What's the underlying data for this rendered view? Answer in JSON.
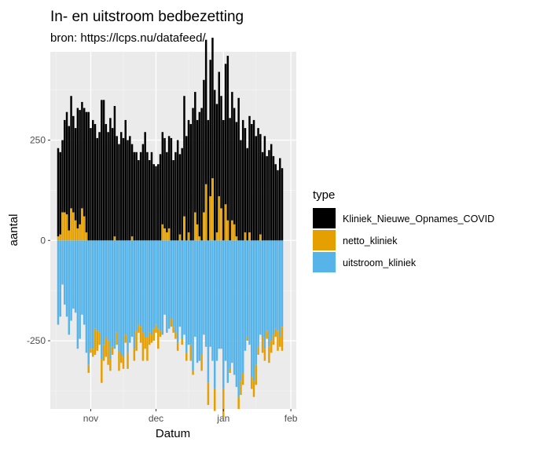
{
  "chart_data": {
    "type": "bar",
    "title": "In- en uitstroom bedbezetting",
    "subtitle": "bron: https://lcps.nu/datafeed/",
    "xlabel": "Datum",
    "ylabel": "aantal",
    "x_ticks": [
      "nov",
      "dec",
      "jan",
      "feb"
    ],
    "y_ticks": [
      250,
      0,
      -250
    ],
    "ylim": [
      -420,
      470
    ],
    "grid": true,
    "legend": {
      "title": "type",
      "position": "right"
    },
    "colors": {
      "Kliniek_Nieuwe_Opnames_COVID": "#000000",
      "netto_kliniek": "#E69F00",
      "uitstroom_kliniek": "#56B4E9"
    },
    "x": [
      "2020-10-17",
      "2020-10-18",
      "2020-10-19",
      "2020-10-20",
      "2020-10-21",
      "2020-10-22",
      "2020-10-23",
      "2020-10-24",
      "2020-10-25",
      "2020-10-26",
      "2020-10-27",
      "2020-10-28",
      "2020-10-29",
      "2020-10-30",
      "2020-10-31",
      "2020-11-01",
      "2020-11-02",
      "2020-11-03",
      "2020-11-04",
      "2020-11-05",
      "2020-11-06",
      "2020-11-07",
      "2020-11-08",
      "2020-11-09",
      "2020-11-10",
      "2020-11-11",
      "2020-11-12",
      "2020-11-13",
      "2020-11-14",
      "2020-11-15",
      "2020-11-16",
      "2020-11-17",
      "2020-11-18",
      "2020-11-19",
      "2020-11-20",
      "2020-11-21",
      "2020-11-22",
      "2020-11-23",
      "2020-11-24",
      "2020-11-25",
      "2020-11-26",
      "2020-11-27",
      "2020-11-28",
      "2020-11-29",
      "2020-11-30",
      "2020-12-01",
      "2020-12-02",
      "2020-12-03",
      "2020-12-04",
      "2020-12-05",
      "2020-12-06",
      "2020-12-07",
      "2020-12-08",
      "2020-12-09",
      "2020-12-10",
      "2020-12-11",
      "2020-12-12",
      "2020-12-13",
      "2020-12-14",
      "2020-12-15",
      "2020-12-16",
      "2020-12-17",
      "2020-12-18",
      "2020-12-19",
      "2020-12-20",
      "2020-12-21",
      "2020-12-22",
      "2020-12-23",
      "2020-12-24",
      "2020-12-25",
      "2020-12-26",
      "2020-12-27",
      "2020-12-28",
      "2020-12-29",
      "2020-12-30",
      "2020-12-31",
      "2021-01-01",
      "2021-01-02",
      "2021-01-03",
      "2021-01-04",
      "2021-01-05",
      "2021-01-06",
      "2021-01-07",
      "2021-01-08",
      "2021-01-09",
      "2021-01-10",
      "2021-01-11",
      "2021-01-12",
      "2021-01-13",
      "2021-01-14",
      "2021-01-15",
      "2021-01-16",
      "2021-01-17",
      "2021-01-18",
      "2021-01-19",
      "2021-01-20",
      "2021-01-21",
      "2021-01-22",
      "2021-01-23",
      "2021-01-24",
      "2021-01-25",
      "2021-01-26",
      "2021-01-27",
      "2021-01-28"
    ],
    "series": [
      {
        "name": "Kliniek_Nieuwe_Opnames_COVID",
        "values": [
          220,
          205,
          180,
          230,
          255,
          260,
          280,
          240,
          230,
          300,
          285,
          265,
          270,
          300,
          320,
          280,
          300,
          290,
          255,
          270,
          350,
          350,
          290,
          270,
          305,
          280,
          325,
          260,
          240,
          270,
          255,
          300,
          250,
          260,
          230,
          220,
          220,
          200,
          220,
          240,
          270,
          220,
          200,
          220,
          190,
          185,
          190,
          215,
          230,
          225,
          200,
          230,
          255,
          200,
          220,
          250,
          200,
          230,
          300,
          260,
          280,
          290,
          330,
          300,
          260,
          310,
          330,
          330,
          360,
          300,
          340,
          350,
          375,
          320,
          310,
          280,
          300,
          350,
          410,
          305,
          320,
          290,
          285,
          355,
          250,
          300,
          260,
          230,
          290,
          290,
          300,
          260,
          280,
          250,
          220,
          260,
          210,
          225,
          240,
          210,
          190,
          175,
          205,
          180
        ]
      },
      {
        "name": "netto_kliniek",
        "values": [
          10,
          15,
          70,
          70,
          65,
          25,
          80,
          70,
          50,
          30,
          40,
          80,
          60,
          20,
          -20,
          -10,
          -20,
          -65,
          -50,
          -30,
          -60,
          -40,
          -50,
          -60,
          -30,
          -20,
          10,
          -30,
          -50,
          -20,
          -30,
          -20,
          -40,
          0,
          10,
          -30,
          -50,
          -20,
          -40,
          -70,
          -30,
          -60,
          -30,
          -20,
          -30,
          -20,
          -50,
          -15,
          40,
          30,
          20,
          30,
          -20,
          -15,
          -15,
          -20,
          15,
          -15,
          60,
          -20,
          20,
          -40,
          -10,
          70,
          40,
          10,
          -40,
          70,
          140,
          -55,
          110,
          155,
          -55,
          20,
          110,
          80,
          -70,
          90,
          50,
          -10,
          50,
          40,
          10,
          -30,
          -35,
          -30,
          20,
          -10,
          20,
          -30,
          -40,
          -50,
          -20,
          15,
          -40,
          -30,
          -20,
          -40,
          -30,
          -25,
          -20,
          -50,
          -25,
          -60
        ]
      },
      {
        "name": "uitstroom_kliniek",
        "values": [
          -210,
          -190,
          -110,
          -160,
          -190,
          -235,
          -200,
          -170,
          -180,
          -270,
          -245,
          -185,
          -210,
          -280,
          -310,
          -270,
          -270,
          -220,
          -225,
          -230,
          -295,
          -260,
          -240,
          -250,
          -295,
          -265,
          -270,
          -230,
          -275,
          -285,
          -290,
          -235,
          -280,
          -255,
          -240,
          -270,
          -225,
          -210,
          -215,
          -230,
          -240,
          -240,
          -230,
          -235,
          -220,
          -210,
          -220,
          -225,
          -235,
          -185,
          -230,
          -220,
          -195,
          -215,
          -230,
          -255,
          -215,
          -245,
          -235,
          -280,
          -260,
          -260,
          -325,
          -240,
          -305,
          -300,
          -285,
          -235,
          -265,
          -355,
          -265,
          -300,
          -370,
          -300,
          -270,
          -270,
          -370,
          -300,
          -355,
          -320,
          -305,
          -335,
          -365,
          -390,
          -350,
          -330,
          -275,
          -240,
          -260,
          -340,
          -350,
          -310,
          -265,
          -235,
          -240,
          -270,
          -225,
          -265,
          -250,
          -235,
          -220,
          -225,
          -240,
          -215
        ]
      }
    ]
  }
}
